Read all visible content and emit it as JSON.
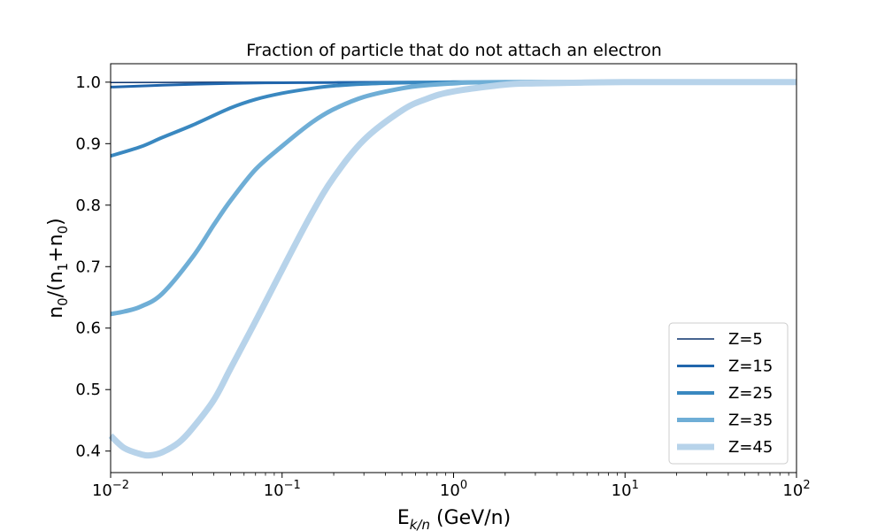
{
  "chart_data": {
    "type": "line",
    "title": "Fraction of particle that do not attach an electron",
    "xlabel": {
      "base": "E",
      "sub": "k/n",
      "rest": " (GeV/n)"
    },
    "ylabel": {
      "p1": "n",
      "s1": "0",
      "p2": "/(n",
      "s2": "1",
      "p3": "+n",
      "s3": "0",
      "p4": ")"
    },
    "x_scale": "log",
    "xlim": [
      0.01,
      100
    ],
    "ylim": [
      0.365,
      1.03
    ],
    "x_ticks": [
      {
        "value": 0.01,
        "base": "10",
        "exp": "−2"
      },
      {
        "value": 0.1,
        "base": "10",
        "exp": "−1"
      },
      {
        "value": 1,
        "base": "10",
        "exp": "0"
      },
      {
        "value": 10,
        "base": "10",
        "exp": "1"
      },
      {
        "value": 100,
        "base": "10",
        "exp": "2"
      }
    ],
    "y_ticks": [
      {
        "value": 0.4,
        "label": "0.4"
      },
      {
        "value": 0.5,
        "label": "0.5"
      },
      {
        "value": 0.6,
        "label": "0.6"
      },
      {
        "value": 0.7,
        "label": "0.7"
      },
      {
        "value": 0.8,
        "label": "0.8"
      },
      {
        "value": 0.9,
        "label": "0.9"
      },
      {
        "value": 1.0,
        "label": "1.0"
      }
    ],
    "grid": false,
    "legend_position": "lower-right",
    "series": [
      {
        "name": "Z=5",
        "color": "#08306b",
        "x": [
          0.01,
          0.02,
          0.05,
          0.1,
          1,
          100
        ],
        "y": [
          0.9995,
          0.9997,
          0.9999,
          1.0,
          1.0,
          1.0
        ]
      },
      {
        "name": "Z=15",
        "color": "#2166ac",
        "x": [
          0.01,
          0.02,
          0.05,
          0.1,
          0.2,
          0.5,
          1,
          100
        ],
        "y": [
          0.992,
          0.995,
          0.998,
          0.999,
          0.9995,
          1.0,
          1.0,
          1.0
        ]
      },
      {
        "name": "Z=25",
        "color": "#3a88c0",
        "x": [
          0.01,
          0.015,
          0.02,
          0.03,
          0.05,
          0.07,
          0.1,
          0.15,
          0.2,
          0.3,
          0.5,
          1,
          2,
          100
        ],
        "y": [
          0.88,
          0.895,
          0.91,
          0.93,
          0.958,
          0.972,
          0.982,
          0.99,
          0.994,
          0.997,
          0.999,
          1.0,
          1.0,
          1.0
        ]
      },
      {
        "name": "Z=35",
        "color": "#6faed6",
        "x": [
          0.01,
          0.012,
          0.015,
          0.02,
          0.03,
          0.04,
          0.05,
          0.07,
          0.1,
          0.15,
          0.2,
          0.3,
          0.5,
          0.7,
          1,
          2,
          100
        ],
        "y": [
          0.623,
          0.627,
          0.635,
          0.656,
          0.715,
          0.768,
          0.807,
          0.858,
          0.896,
          0.935,
          0.956,
          0.976,
          0.99,
          0.995,
          0.998,
          1.0,
          1.0
        ]
      },
      {
        "name": "Z=45",
        "color": "#b7d3ea",
        "x": [
          0.01,
          0.012,
          0.015,
          0.017,
          0.02,
          0.025,
          0.03,
          0.04,
          0.05,
          0.07,
          0.1,
          0.15,
          0.2,
          0.3,
          0.5,
          0.7,
          1,
          2,
          3,
          5,
          10,
          100
        ],
        "y": [
          0.425,
          0.405,
          0.395,
          0.393,
          0.398,
          0.414,
          0.437,
          0.483,
          0.534,
          0.611,
          0.695,
          0.788,
          0.845,
          0.906,
          0.954,
          0.973,
          0.985,
          0.996,
          0.998,
          0.999,
          1.0,
          1.0
        ]
      }
    ]
  }
}
